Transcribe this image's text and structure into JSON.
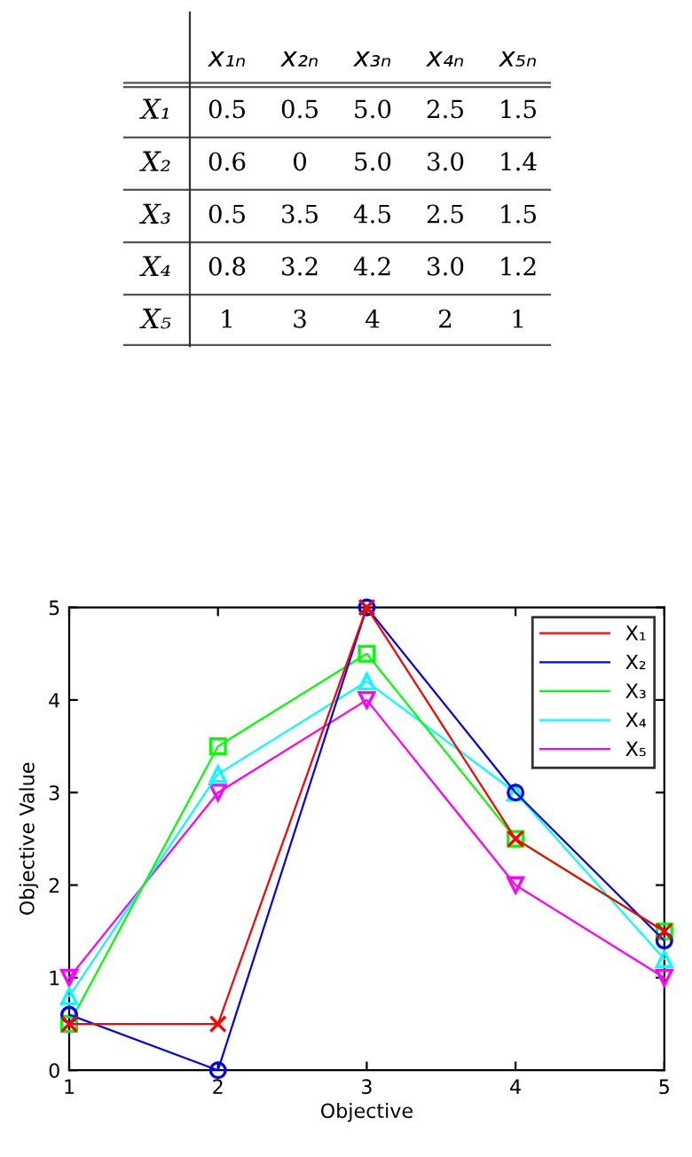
{
  "chart_data": [
    {
      "type": "other",
      "categories": [
        "x₁ₙ",
        "x₂ₙ",
        "x₃ₙ",
        "x₄ₙ",
        "x₅ₙ"
      ],
      "y_categories": [
        "X₁",
        "X₂",
        "X₃",
        "X₄",
        "X₅"
      ],
      "cell_labels": [
        [
          "0.5",
          "0.5",
          "5.0",
          "2.5",
          "1.5"
        ],
        [
          "0.6",
          "0",
          "5.0",
          "3.0",
          "1.4"
        ],
        [
          "0.5",
          "3.5",
          "4.5",
          "2.5",
          "1.5"
        ],
        [
          "0.8",
          "3.2",
          "4.2",
          "3.0",
          "1.2"
        ],
        [
          "1",
          "3",
          "4",
          "2",
          "1"
        ]
      ]
    },
    {
      "type": "line",
      "xlabel": "Objective",
      "ylabel": "Objective Value",
      "x": [
        1,
        2,
        3,
        4,
        5
      ],
      "xlim": [
        1,
        5
      ],
      "xticks": [
        1,
        2,
        3,
        4,
        5
      ],
      "ylim": [
        0,
        5
      ],
      "yticks": [
        0,
        1,
        2,
        3,
        4,
        5
      ],
      "grid": false,
      "legend": "top right",
      "line_style": "solid",
      "series": [
        {
          "name": "X₁",
          "color": "#ff0000",
          "marker": "cross",
          "values": [
            0.5,
            0.5,
            5.0,
            2.5,
            1.5
          ]
        },
        {
          "name": "X₂",
          "color": "#0000ff",
          "marker": "circle",
          "values": [
            0.6,
            0,
            5.0,
            3.0,
            1.4
          ]
        },
        {
          "name": "X₃",
          "color": "#00ff00",
          "marker": "square",
          "values": [
            0.5,
            3.5,
            4.5,
            2.5,
            1.5
          ]
        },
        {
          "name": "X₄",
          "color": "#00ffff",
          "marker": "triangle",
          "values": [
            0.8,
            3.2,
            4.2,
            3.0,
            1.2
          ]
        },
        {
          "name": "X₅",
          "color": "#ff00ff",
          "marker": "triangle_down",
          "values": [
            1,
            3,
            4,
            2,
            1
          ]
        }
      ]
    }
  ]
}
